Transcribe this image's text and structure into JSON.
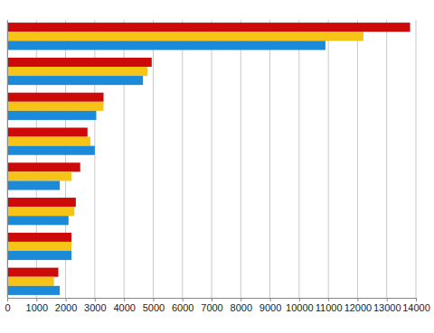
{
  "chart_data": {
    "type": "bar",
    "orientation": "horizontal",
    "categories": [
      null,
      null,
      null,
      null,
      null,
      null,
      null,
      null
    ],
    "series": [
      {
        "color": "#cc0a0a",
        "values": [
          13800,
          4950,
          3300,
          2750,
          2500,
          2350,
          2200,
          1750
        ]
      },
      {
        "color": "#f6c417",
        "values": [
          12200,
          4800,
          3300,
          2850,
          2200,
          2300,
          2200,
          1600
        ]
      },
      {
        "color": "#1b8ad8",
        "values": [
          10900,
          4650,
          3050,
          3000,
          1800,
          2100,
          2200,
          1800
        ]
      }
    ],
    "xlim": [
      0,
      14000
    ],
    "xticks": [
      0,
      1000,
      2000,
      3000,
      4000,
      5000,
      6000,
      7000,
      8000,
      9000,
      10000,
      11000,
      12000,
      13000,
      14000
    ],
    "grid": true,
    "tick_labels": "x"
  }
}
